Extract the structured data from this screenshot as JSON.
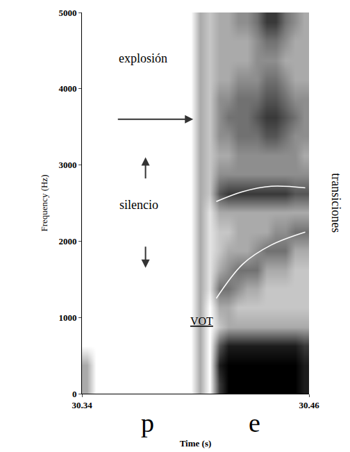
{
  "chart_data": {
    "type": "heatmap",
    "x_label": "Time (s)",
    "y_label": "Frequency (Hz)",
    "xlim": [
      30.34,
      30.46
    ],
    "xticks": [
      30.34,
      30.46
    ],
    "ylim": [
      0,
      5000
    ],
    "yticks": [
      0,
      1000,
      2000,
      3000,
      4000,
      5000
    ],
    "grid": false,
    "x": [
      30.3425,
      30.3475,
      30.3525,
      30.3575,
      30.3625,
      30.3675,
      30.3725,
      30.3775,
      30.3825,
      30.3875,
      30.3925,
      30.3975,
      30.4025,
      30.4075,
      30.4125,
      30.4175,
      30.4225,
      30.4275,
      30.4325,
      30.4375,
      30.4425,
      30.4475,
      30.4525,
      30.4575
    ],
    "y": [
      125,
      375,
      625,
      875,
      1125,
      1375,
      1625,
      1875,
      2125,
      2375,
      2625,
      2875,
      3125,
      3375,
      3625,
      3875,
      4125,
      4375,
      4625,
      4875
    ],
    "zlim": [
      0,
      9
    ],
    "z": [
      [
        3,
        0,
        0,
        0,
        0,
        0,
        0,
        0,
        0,
        0,
        0,
        0,
        3,
        0,
        7,
        9,
        9,
        9,
        9,
        9,
        9,
        9,
        9,
        8
      ],
      [
        3,
        0,
        0,
        0,
        0,
        0,
        0,
        0,
        0,
        0,
        0,
        0,
        3,
        0,
        8,
        9,
        9,
        9,
        9,
        9,
        9,
        9,
        9,
        8
      ],
      [
        0,
        0,
        0,
        0,
        0,
        0,
        0,
        0,
        0,
        0,
        0,
        0,
        3,
        0,
        6,
        8,
        8,
        8,
        8,
        8,
        8,
        8,
        8,
        7
      ],
      [
        0,
        0,
        0,
        0,
        0,
        0,
        0,
        0,
        0,
        0,
        0,
        0,
        3,
        0,
        2,
        3,
        3,
        3,
        3,
        3,
        3,
        3,
        3,
        3
      ],
      [
        0,
        0,
        0,
        0,
        0,
        0,
        0,
        0,
        0,
        0,
        0,
        0,
        3,
        0,
        3,
        3,
        2,
        2,
        2,
        2,
        2,
        2,
        2,
        2
      ],
      [
        0,
        0,
        0,
        0,
        0,
        0,
        0,
        0,
        0,
        0,
        0,
        0,
        3,
        1,
        5,
        5,
        4,
        3,
        3,
        2,
        2,
        2,
        2,
        2
      ],
      [
        0,
        0,
        0,
        0,
        0,
        0,
        0,
        0,
        0,
        0,
        0,
        0,
        3,
        1,
        3,
        4,
        5,
        5,
        5,
        3,
        3,
        3,
        2,
        2
      ],
      [
        0,
        0,
        0,
        0,
        0,
        0,
        0,
        0,
        0,
        0,
        0,
        0,
        3,
        1,
        2,
        3,
        3,
        3,
        4,
        5,
        5,
        5,
        3,
        3
      ],
      [
        0,
        0,
        0,
        0,
        0,
        0,
        0,
        0,
        0,
        0,
        0,
        0,
        3,
        1,
        2,
        2,
        3,
        3,
        3,
        3,
        4,
        4,
        5,
        5
      ],
      [
        0,
        0,
        0,
        0,
        0,
        0,
        0,
        0,
        0,
        0,
        0,
        0,
        3,
        1,
        3,
        3,
        3,
        3,
        3,
        3,
        3,
        3,
        3,
        3
      ],
      [
        0,
        0,
        0,
        0,
        0,
        0,
        0,
        0,
        0,
        0,
        0,
        0,
        3,
        2,
        6,
        7,
        7,
        7,
        7,
        7,
        7,
        7,
        6,
        6
      ],
      [
        0,
        0,
        0,
        0,
        0,
        0,
        0,
        0,
        0,
        0,
        0,
        0,
        3,
        2,
        4,
        4,
        4,
        4,
        4,
        4,
        4,
        4,
        4,
        4
      ],
      [
        0,
        0,
        0,
        0,
        0,
        0,
        0,
        0,
        0,
        0,
        0,
        0,
        3,
        2,
        3,
        3,
        4,
        4,
        4,
        4,
        4,
        4,
        4,
        3
      ],
      [
        0,
        0,
        0,
        0,
        0,
        0,
        0,
        0,
        0,
        0,
        0,
        0,
        3,
        2,
        4,
        4,
        5,
        5,
        5,
        6,
        6,
        5,
        4,
        4
      ],
      [
        0,
        0,
        0,
        0,
        0,
        0,
        0,
        0,
        0,
        0,
        0,
        0,
        3,
        2,
        4,
        5,
        5,
        5,
        6,
        7,
        7,
        6,
        5,
        4
      ],
      [
        0,
        0,
        0,
        0,
        0,
        0,
        0,
        0,
        0,
        0,
        0,
        0,
        3,
        2,
        4,
        4,
        5,
        5,
        5,
        6,
        6,
        5,
        4,
        4
      ],
      [
        0,
        0,
        0,
        0,
        0,
        0,
        0,
        0,
        0,
        0,
        0,
        0,
        3,
        2,
        3,
        3,
        4,
        4,
        4,
        5,
        5,
        4,
        3,
        3
      ],
      [
        0,
        0,
        0,
        0,
        0,
        0,
        0,
        0,
        0,
        0,
        0,
        0,
        3,
        2,
        3,
        3,
        3,
        3,
        4,
        4,
        4,
        3,
        3,
        3
      ],
      [
        0,
        0,
        0,
        0,
        0,
        0,
        0,
        0,
        0,
        0,
        0,
        0,
        3,
        2,
        3,
        3,
        3,
        3,
        4,
        5,
        5,
        4,
        3,
        3
      ],
      [
        0,
        0,
        0,
        0,
        0,
        0,
        0,
        0,
        0,
        0,
        0,
        0,
        3,
        2,
        3,
        3,
        4,
        4,
        5,
        7,
        7,
        5,
        4,
        3
      ]
    ],
    "series": [
      {
        "type": "line",
        "color": "#ffffff",
        "line_style": "solid",
        "x": [
          30.411,
          30.425,
          30.44,
          30.458
        ],
        "values": [
          2520,
          2650,
          2720,
          2700
        ]
      },
      {
        "type": "line",
        "color": "#ffffff",
        "line_style": "solid",
        "x": [
          30.411,
          30.425,
          30.44,
          30.458
        ],
        "values": [
          1250,
          1700,
          1950,
          2120
        ]
      }
    ],
    "annotations": [
      "explosión",
      "silencio",
      "VOT",
      "transiciones"
    ],
    "segment_labels": [
      "p",
      "e"
    ]
  }
}
